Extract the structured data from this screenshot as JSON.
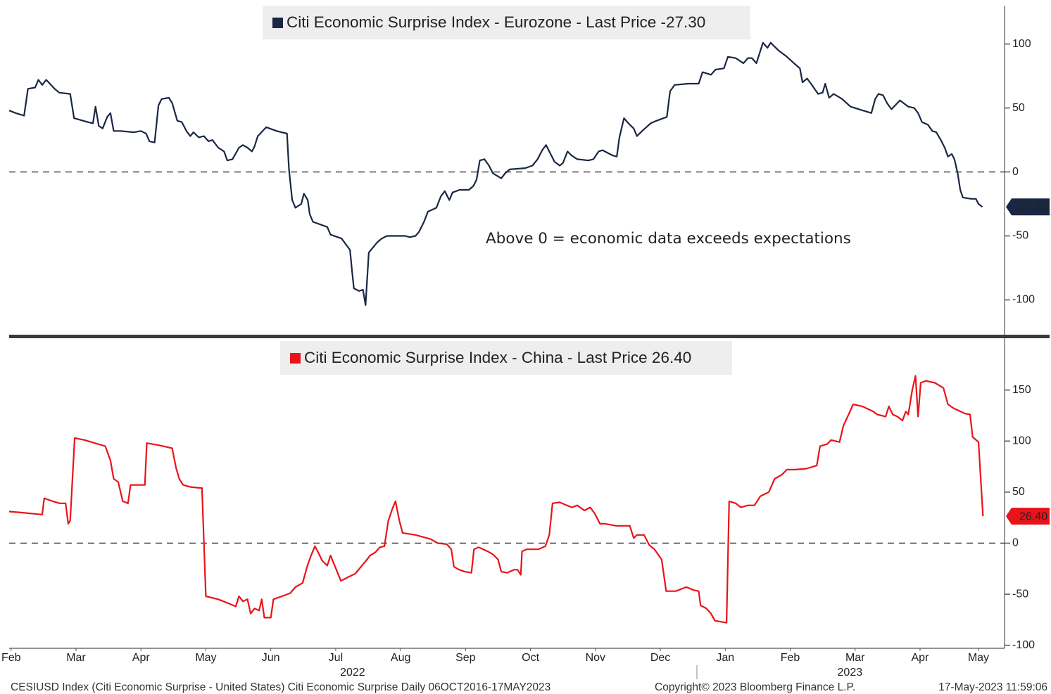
{
  "chart_data": [
    {
      "type": "line",
      "annotation": "Above 0 = economic data exceeds expectations",
      "xlim": [
        1.47,
        16.78
      ],
      "ylim": [
        -125,
        130
      ],
      "yticks": [
        100,
        50,
        0,
        -50,
        -100
      ],
      "reference_line": 0,
      "x": [
        1.47,
        1.57,
        1.7,
        1.76,
        1.87,
        1.92,
        1.98,
        2.04,
        2.17,
        2.24,
        2.41,
        2.47,
        2.68,
        2.76,
        2.8,
        2.85,
        2.91,
        2.98,
        3.03,
        3.08,
        3.19,
        3.39,
        3.5,
        3.58,
        3.63,
        3.71,
        3.77,
        3.82,
        3.93,
        3.98,
        4.06,
        4.13,
        4.2,
        4.26,
        4.31,
        4.39,
        4.47,
        4.54,
        4.6,
        4.69,
        4.78,
        4.83,
        4.91,
        5.01,
        5.07,
        5.14,
        5.21,
        5.25,
        5.3,
        5.43,
        5.59,
        5.75,
        5.78,
        5.83,
        5.88,
        5.97,
        6.01,
        6.07,
        6.1,
        6.15,
        6.37,
        6.42,
        6.59,
        6.72,
        6.75,
        6.78,
        6.86,
        6.92,
        6.96,
        7.01,
        7.14,
        7.21,
        7.29,
        7.57,
        7.64,
        7.73,
        7.78,
        7.86,
        7.92,
        8.05,
        8.12,
        8.18,
        8.25,
        8.3,
        8.41,
        8.55,
        8.62,
        8.67,
        8.72,
        8.79,
        8.86,
        8.92,
        9.05,
        9.11,
        9.18,
        9.42,
        9.53,
        9.61,
        9.68,
        9.74,
        9.81,
        9.87,
        9.95,
        10.0,
        10.07,
        10.13,
        10.22,
        10.39,
        10.47,
        10.55,
        10.61,
        10.76,
        10.83,
        10.87,
        10.94,
        11.01,
        11.09,
        11.14,
        11.22,
        11.35,
        11.44,
        11.6,
        11.65,
        11.72,
        11.93,
        12.09,
        12.15,
        12.28,
        12.35,
        12.48,
        12.54,
        12.66,
        12.78,
        12.85,
        12.91,
        12.98,
        13.08,
        13.15,
        13.2,
        13.32,
        13.45,
        13.58,
        13.65,
        13.69,
        13.76,
        13.82,
        13.93,
        14.0,
        14.04,
        14.1,
        14.17,
        14.3,
        14.43,
        14.56,
        14.75,
        14.81,
        14.86,
        14.93,
        14.99,
        15.06,
        15.19,
        15.32,
        15.41,
        15.47,
        15.53,
        15.62,
        15.69,
        15.75,
        15.82,
        15.88,
        15.93,
        15.99,
        16.03,
        16.08,
        16.12,
        16.16,
        16.29,
        16.36,
        16.4,
        16.46
      ],
      "series": [
        {
          "name": "Citi Economic Surprise Index - Eurozone - Last Price -27.30",
          "color": "#1a2744",
          "last_price_label": "-27.30",
          "values": [
            48,
            46,
            44,
            65,
            66,
            72,
            68,
            72,
            65,
            62,
            61,
            42,
            39,
            38,
            51,
            36,
            34,
            43,
            46,
            32,
            32,
            31,
            32,
            30,
            24,
            23,
            52,
            57,
            58,
            54,
            40,
            39,
            32,
            28,
            31,
            27,
            28,
            24,
            25,
            19,
            16,
            9,
            10,
            19,
            21,
            19,
            16,
            20,
            28,
            35,
            32,
            30,
            2,
            -22,
            -28,
            -25,
            -17,
            -22,
            -33,
            -39,
            -43,
            -49,
            -52,
            -61,
            -77,
            -91,
            -93,
            -92,
            -104,
            -63,
            -55,
            -52,
            -50,
            -50,
            -51,
            -50,
            -47,
            -39,
            -31,
            -28,
            -19,
            -15,
            -22,
            -16,
            -14,
            -14,
            -11,
            -6,
            9,
            10,
            5,
            -1,
            -5,
            -1,
            2,
            3,
            5,
            10,
            17,
            21,
            14,
            8,
            5,
            7,
            16,
            13,
            10,
            9,
            10,
            16,
            17,
            13,
            12,
            27,
            42,
            38,
            34,
            28,
            32,
            38,
            40,
            43,
            63,
            68,
            69,
            69,
            78,
            76,
            80,
            81,
            90,
            89,
            85,
            89,
            89,
            85,
            101,
            97,
            101,
            95,
            90,
            84,
            81,
            70,
            73,
            69,
            61,
            62,
            69,
            58,
            61,
            57,
            51,
            49,
            46,
            57,
            61,
            60,
            54,
            49,
            56,
            51,
            50,
            46,
            39,
            37,
            32,
            31,
            25,
            19,
            12,
            14,
            10,
            -1,
            -14,
            -20,
            -21,
            -21,
            -25,
            -27.3
          ]
        }
      ]
    },
    {
      "type": "line",
      "xlim": [
        1.47,
        16.78
      ],
      "xticks": [
        {
          "value": 1.5,
          "label": "Feb"
        },
        {
          "value": 2.5,
          "label": "Mar"
        },
        {
          "value": 3.5,
          "label": "Apr"
        },
        {
          "value": 4.5,
          "label": "May"
        },
        {
          "value": 5.5,
          "label": "Jun"
        },
        {
          "value": 6.5,
          "label": "Jul"
        },
        {
          "value": 7.5,
          "label": "Aug"
        },
        {
          "value": 8.5,
          "label": "Sep"
        },
        {
          "value": 9.5,
          "label": "Oct"
        },
        {
          "value": 10.5,
          "label": "Nov"
        },
        {
          "value": 11.5,
          "label": "Dec"
        },
        {
          "value": 12.5,
          "label": "Jan"
        },
        {
          "value": 13.5,
          "label": "Feb"
        },
        {
          "value": 14.5,
          "label": "Mar"
        },
        {
          "value": 15.5,
          "label": "Apr"
        },
        {
          "value": 16.4,
          "label": "May"
        }
      ],
      "year_labels": [
        {
          "value": 6.76,
          "label": "2022"
        },
        {
          "value": 14.42,
          "label": "2023"
        }
      ],
      "ylim": [
        -103,
        198
      ],
      "yticks": [
        150,
        100,
        50,
        0,
        -50,
        -100
      ],
      "reference_line": 0,
      "x": [
        1.47,
        1.65,
        1.98,
        2.01,
        2.14,
        2.25,
        2.34,
        2.38,
        2.41,
        2.48,
        2.63,
        2.79,
        2.95,
        3.03,
        3.08,
        3.15,
        3.22,
        3.3,
        3.34,
        3.47,
        3.56,
        3.59,
        3.77,
        3.98,
        4.04,
        4.09,
        4.15,
        4.26,
        4.44,
        4.5,
        4.69,
        4.85,
        4.96,
        5.01,
        5.07,
        5.14,
        5.19,
        5.25,
        5.32,
        5.36,
        5.4,
        5.5,
        5.54,
        5.67,
        5.8,
        5.88,
        5.99,
        6.06,
        6.12,
        6.18,
        6.23,
        6.29,
        6.37,
        6.42,
        6.51,
        6.58,
        6.7,
        6.8,
        6.89,
        6.97,
        7.03,
        7.11,
        7.18,
        7.25,
        7.31,
        7.38,
        7.42,
        7.48,
        7.53,
        7.73,
        7.96,
        8.07,
        8.21,
        8.28,
        8.32,
        8.4,
        8.49,
        8.59,
        8.63,
        8.7,
        8.84,
        8.92,
        9.0,
        9.05,
        9.14,
        9.25,
        9.3,
        9.35,
        9.37,
        9.44,
        9.62,
        9.73,
        9.79,
        9.84,
        9.95,
        10.06,
        10.14,
        10.22,
        10.33,
        10.42,
        10.49,
        10.57,
        10.65,
        10.82,
        11.03,
        11.09,
        11.14,
        11.25,
        11.33,
        11.41,
        11.52,
        11.59,
        11.74,
        11.9,
        12.01,
        12.09,
        12.12,
        12.21,
        12.28,
        12.34,
        12.44,
        12.52,
        12.56,
        12.66,
        12.74,
        12.85,
        12.95,
        13.04,
        13.17,
        13.26,
        13.37,
        13.45,
        13.58,
        13.75,
        13.91,
        13.96,
        14.07,
        14.13,
        14.26,
        14.32,
        14.4,
        14.47,
        14.61,
        14.78,
        14.84,
        14.97,
        15.02,
        15.08,
        15.15,
        15.23,
        15.28,
        15.32,
        15.38,
        15.43,
        15.47,
        15.51,
        15.59,
        15.73,
        15.86,
        15.93,
        16.02,
        16.19,
        16.27,
        16.31,
        16.4,
        16.47
      ],
      "series": [
        {
          "name": "Citi Economic Surprise Index - China - Last Price 26.40",
          "color": "#e8141a",
          "last_price_label": "26.40",
          "values": [
            31,
            30,
            28,
            44,
            41,
            39,
            39,
            19,
            22,
            103,
            101,
            98,
            95,
            81,
            63,
            60,
            41,
            39,
            57,
            57,
            57,
            98,
            96,
            93,
            74,
            63,
            57,
            55,
            54,
            -52,
            -55,
            -59,
            -62,
            -52,
            -57,
            -55,
            -69,
            -64,
            -66,
            -55,
            -73,
            -73,
            -55,
            -52,
            -49,
            -43,
            -39,
            -23,
            -12,
            -3,
            -9,
            -17,
            -22,
            -12,
            -26,
            -37,
            -33,
            -30,
            -23,
            -17,
            -12,
            -9,
            -4,
            -3,
            22,
            35,
            41,
            22,
            10,
            8,
            4,
            0,
            -1,
            -6,
            -23,
            -26,
            -28,
            -29,
            -6,
            -4,
            -8,
            -11,
            -16,
            -28,
            -29,
            -26,
            -26,
            -31,
            -8,
            -6,
            -6,
            -3,
            8,
            39,
            40,
            37,
            35,
            37,
            32,
            35,
            29,
            19,
            19,
            17,
            17,
            5,
            8,
            8,
            -2,
            -6,
            -16,
            -47,
            -47,
            -43,
            -46,
            -47,
            -61,
            -64,
            -69,
            -76,
            -77,
            -78,
            41,
            39,
            35,
            37,
            37,
            46,
            50,
            63,
            67,
            72,
            72,
            73,
            76,
            95,
            97,
            101,
            99,
            115,
            126,
            136,
            134,
            129,
            126,
            124,
            134,
            126,
            124,
            120,
            129,
            126,
            150,
            164,
            124,
            157,
            159,
            157,
            152,
            136,
            132,
            127,
            126,
            104,
            99,
            26.4
          ]
        }
      ]
    }
  ],
  "footer": {
    "left": "CESIUSD Index (Citi Economic Surprise - United States) Citi Economic Surprise  Daily 06OCT2016-17MAY2023",
    "center": "Copyright© 2023 Bloomberg Finance L.P.",
    "right": "17-May-2023 11:59:06"
  }
}
